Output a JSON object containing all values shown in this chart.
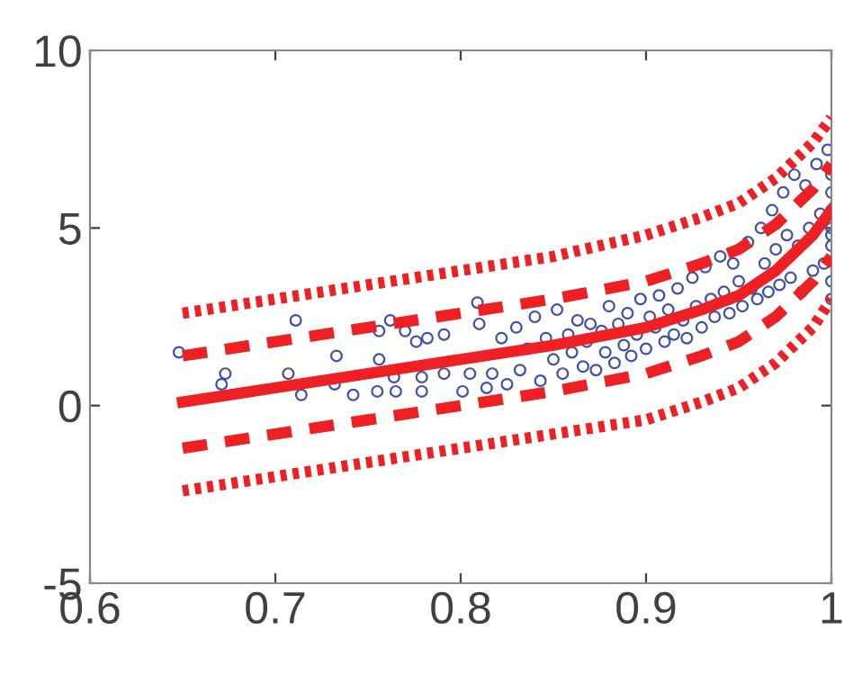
{
  "chart_data": {
    "type": "scatter",
    "xlim": [
      0.6,
      1
    ],
    "ylim": [
      -5,
      10
    ],
    "xticks": [
      0.6,
      0.7,
      0.8,
      0.9,
      1
    ],
    "yticks": [
      -5,
      0,
      5,
      10
    ],
    "grid": false,
    "legend": false,
    "series": [
      {
        "color": "#3f51a5",
        "marker": "circle",
        "x": [
          0.648,
          0.671,
          0.673,
          0.707,
          0.711,
          0.714,
          0.732,
          0.733,
          0.742,
          0.755,
          0.756,
          0.756,
          0.762,
          0.764,
          0.765,
          0.77,
          0.776,
          0.779,
          0.779,
          0.782,
          0.791,
          0.791,
          0.801,
          0.805,
          0.809,
          0.81,
          0.814,
          0.817,
          0.822,
          0.825,
          0.83,
          0.832,
          0.836,
          0.84,
          0.843,
          0.846,
          0.85,
          0.852,
          0.855,
          0.858,
          0.86,
          0.863,
          0.866,
          0.868,
          0.87,
          0.873,
          0.876,
          0.878,
          0.88,
          0.883,
          0.885,
          0.888,
          0.89,
          0.892,
          0.895,
          0.897,
          0.9,
          0.902,
          0.905,
          0.907,
          0.91,
          0.912,
          0.915,
          0.917,
          0.92,
          0.922,
          0.925,
          0.927,
          0.93,
          0.932,
          0.935,
          0.937,
          0.94,
          0.942,
          0.945,
          0.947,
          0.95,
          0.952,
          0.955,
          0.957,
          0.96,
          0.962,
          0.964,
          0.966,
          0.968,
          0.97,
          0.972,
          0.974,
          0.976,
          0.978,
          0.98,
          0.982,
          0.984,
          0.986,
          0.988,
          0.99,
          0.992,
          0.994,
          0.996,
          0.998,
          1,
          1,
          1,
          1,
          1,
          1,
          1,
          1
        ],
        "values": [
          1.5,
          0.6,
          0.9,
          0.9,
          2.4,
          0.3,
          0.6,
          1.4,
          0.3,
          0.4,
          2.1,
          1.3,
          2.4,
          0.8,
          0.4,
          2.1,
          1.8,
          0.8,
          0.4,
          1.9,
          2.0,
          0.9,
          0.4,
          0.9,
          2.9,
          2.3,
          0.5,
          0.9,
          1.9,
          0.6,
          2.2,
          1.0,
          1.6,
          2.5,
          0.7,
          1.9,
          1.3,
          2.7,
          0.9,
          2.0,
          1.5,
          2.4,
          1.1,
          1.8,
          2.3,
          1.0,
          2.1,
          1.5,
          2.8,
          1.2,
          2.3,
          1.7,
          2.6,
          1.4,
          2.0,
          3.0,
          1.6,
          2.5,
          2.2,
          3.1,
          1.8,
          2.7,
          2.0,
          3.3,
          2.4,
          1.9,
          3.6,
          2.8,
          2.2,
          3.9,
          3.0,
          2.5,
          4.2,
          3.2,
          2.6,
          4.0,
          3.5,
          2.8,
          4.6,
          3.3,
          3.0,
          5.0,
          4.0,
          3.2,
          5.5,
          4.4,
          3.4,
          6.0,
          4.8,
          3.6,
          6.5,
          4.5,
          3.2,
          6.2,
          5.0,
          3.8,
          6.8,
          5.4,
          4.0,
          7.2,
          3.0,
          3.5,
          4.8,
          4.5,
          5.0,
          5.5,
          6.0,
          6.5
        ]
      },
      {
        "type": "line",
        "color": "#ee2024",
        "line_style": "solid",
        "x": [
          0.65,
          0.7,
          0.75,
          0.8,
          0.85,
          0.9,
          0.93,
          0.95,
          0.97,
          0.98,
          0.99,
          1
        ],
        "values": [
          0.1,
          0.5,
          0.9,
          1.3,
          1.7,
          2.2,
          2.7,
          3.1,
          3.8,
          4.3,
          4.8,
          5.5
        ]
      },
      {
        "type": "line",
        "color": "#ee2024",
        "line_style": "dashed",
        "x": [
          0.65,
          0.7,
          0.75,
          0.8,
          0.85,
          0.9,
          0.93,
          0.95,
          0.97,
          0.98,
          0.99,
          1
        ],
        "values": [
          1.4,
          1.8,
          2.2,
          2.6,
          3.0,
          3.5,
          4.0,
          4.4,
          5.1,
          5.6,
          6.1,
          6.8
        ]
      },
      {
        "type": "line",
        "color": "#ee2024",
        "line_style": "dashed",
        "x": [
          0.65,
          0.7,
          0.75,
          0.8,
          0.85,
          0.9,
          0.93,
          0.95,
          0.97,
          0.98,
          0.99,
          1
        ],
        "values": [
          -1.2,
          -0.8,
          -0.4,
          0.0,
          0.4,
          0.9,
          1.4,
          1.8,
          2.5,
          3.0,
          3.5,
          4.2
        ]
      },
      {
        "type": "line",
        "color": "#ee2024",
        "line_style": "dotted",
        "x": [
          0.65,
          0.7,
          0.75,
          0.8,
          0.85,
          0.9,
          0.93,
          0.95,
          0.97,
          0.98,
          0.99,
          1
        ],
        "values": [
          2.6,
          3.0,
          3.4,
          3.8,
          4.2,
          4.8,
          5.3,
          5.7,
          6.4,
          6.9,
          7.4,
          8.1
        ]
      },
      {
        "type": "line",
        "color": "#ee2024",
        "line_style": "dotted",
        "x": [
          0.65,
          0.7,
          0.75,
          0.8,
          0.85,
          0.9,
          0.93,
          0.95,
          0.97,
          0.98,
          0.99,
          1
        ],
        "values": [
          -2.4,
          -2.0,
          -1.6,
          -1.2,
          -0.8,
          -0.4,
          0.1,
          0.5,
          1.2,
          1.7,
          2.2,
          3.0
        ]
      }
    ]
  }
}
